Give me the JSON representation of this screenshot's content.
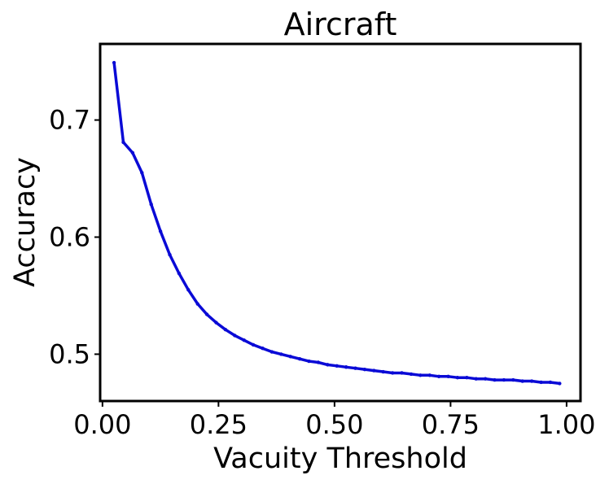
{
  "chart_data": {
    "type": "line",
    "title": "Aircraft",
    "xlabel": "Vacuity Threshold",
    "ylabel": "Accuracy",
    "xlim": [
      -0.005,
      1.03
    ],
    "ylim": [
      0.46,
      0.765
    ],
    "xticks": [
      0.0,
      0.25,
      0.5,
      0.75,
      1.0
    ],
    "xtick_labels": [
      "0.00",
      "0.25",
      "0.50",
      "0.75",
      "1.00"
    ],
    "yticks": [
      0.5,
      0.6,
      0.7
    ],
    "ytick_labels": [
      "0.5",
      "0.6",
      "0.7"
    ],
    "grid": false,
    "legend": "none",
    "series": [
      {
        "color": "#0a0ad6",
        "x": [
          0.025,
          0.045,
          0.065,
          0.085,
          0.105,
          0.125,
          0.145,
          0.165,
          0.185,
          0.205,
          0.225,
          0.245,
          0.265,
          0.285,
          0.305,
          0.325,
          0.345,
          0.365,
          0.385,
          0.405,
          0.425,
          0.445,
          0.465,
          0.485,
          0.505,
          0.525,
          0.545,
          0.565,
          0.585,
          0.605,
          0.625,
          0.645,
          0.665,
          0.685,
          0.705,
          0.725,
          0.745,
          0.765,
          0.785,
          0.805,
          0.825,
          0.845,
          0.865,
          0.885,
          0.905,
          0.925,
          0.945,
          0.965,
          0.985
        ],
        "y": [
          0.749,
          0.681,
          0.672,
          0.655,
          0.628,
          0.605,
          0.585,
          0.569,
          0.555,
          0.543,
          0.534,
          0.527,
          0.521,
          0.516,
          0.512,
          0.508,
          0.505,
          0.502,
          0.5,
          0.498,
          0.496,
          0.494,
          0.493,
          0.491,
          0.49,
          0.489,
          0.488,
          0.487,
          0.486,
          0.485,
          0.484,
          0.484,
          0.483,
          0.482,
          0.482,
          0.481,
          0.481,
          0.48,
          0.48,
          0.479,
          0.479,
          0.478,
          0.478,
          0.478,
          0.477,
          0.477,
          0.476,
          0.476,
          0.475
        ]
      }
    ]
  }
}
